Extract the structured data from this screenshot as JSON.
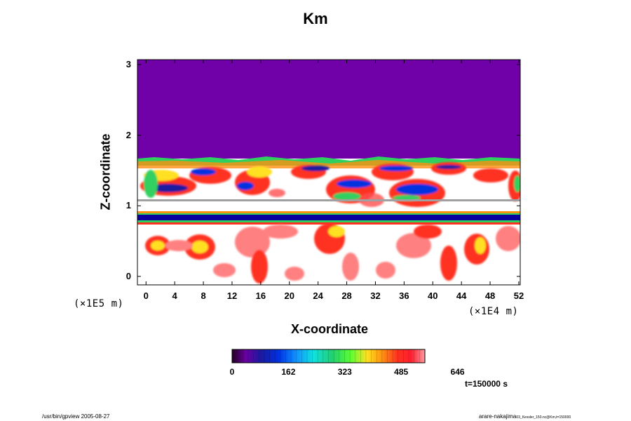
{
  "chart_data": {
    "type": "heatmap",
    "title": "Km",
    "xlabel": "X-coordinate",
    "ylabel": "Z-coordinate",
    "x_scale_label": "(×1E4 m)",
    "y_scale_label": "(×1E5 m)",
    "xlim": [
      -1.2,
      52.2
    ],
    "ylim": [
      -0.12,
      3.07
    ],
    "x_ticks": [
      "0",
      "4",
      "8",
      "12",
      "16",
      "20",
      "24",
      "28",
      "32",
      "36",
      "40",
      "44",
      "48",
      "52"
    ],
    "y_ticks": [
      "0",
      "1",
      "2",
      "3"
    ],
    "colorbar": {
      "tick_labels": [
        "0",
        "162",
        "323",
        "485",
        "646"
      ],
      "colors": [
        "#220022",
        "#6a00a0",
        "#1a1aa0",
        "#0030e0",
        "#1090ff",
        "#10e0e0",
        "#20d070",
        "#60ff30",
        "#ffe020",
        "#ff9010",
        "#ff3020",
        "#ff2030",
        "#ff9aa0"
      ]
    },
    "regions": [
      {
        "z_range": [
          1.7,
          3.07
        ],
        "description_level": "0",
        "color": "#7000a8"
      },
      {
        "z_range": [
          0.82,
          0.9
        ],
        "description_level": "mixed",
        "color": "#0a00a0"
      },
      {
        "z_range": [
          1.07,
          1.09
        ],
        "description_level": "mixed",
        "color": "#a0a0a0"
      }
    ],
    "time_label": "t=150000 s"
  },
  "footer": {
    "left": "/usr/bin/gpview 2005-08-27",
    "right_main": "arare-nakajima",
    "right_small": "03_Kessler_150.nc@Km,t=150000"
  }
}
